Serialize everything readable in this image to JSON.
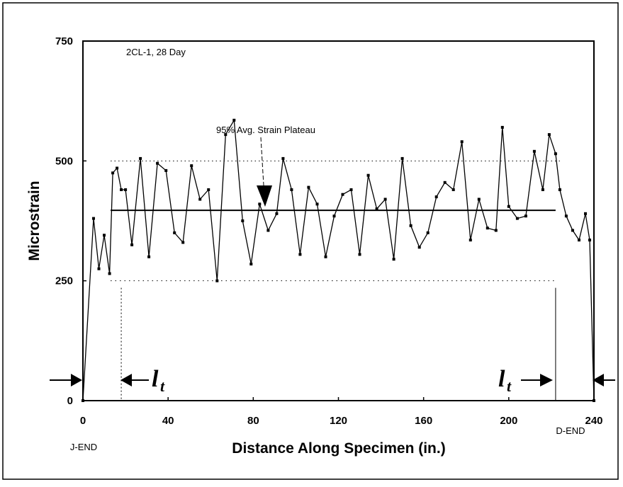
{
  "chart_data": {
    "type": "line",
    "title": "",
    "annotation_label": "2CL-1, 28 Day",
    "plateau_label": "95% Avg. Strain Plateau",
    "xlabel": "Distance Along Specimen (in.)",
    "ylabel": "Microstrain",
    "xlim": [
      0,
      240
    ],
    "ylim": [
      0,
      750
    ],
    "x_ticks": [
      "0",
      "40",
      "80",
      "120",
      "160",
      "200",
      "240"
    ],
    "y_ticks": [
      "0",
      "250",
      "500",
      "750"
    ],
    "end_labels": {
      "left": "J-END",
      "right": "D-END"
    },
    "transfer_length_symbol": "l",
    "transfer_length_subscript": "t",
    "reference_lines": {
      "upper": 500,
      "lower": 250
    },
    "plateau": {
      "value": 397,
      "x_start": 13,
      "x_end": 222
    },
    "transfer_lengths": {
      "left_x": 18,
      "right_x": 222
    },
    "grid": false,
    "series": [
      {
        "x": [
          0,
          5,
          7.5,
          10,
          12.5,
          14,
          16,
          18,
          20,
          23,
          27,
          31,
          35,
          39,
          43,
          47,
          51,
          55,
          59,
          63,
          67,
          71,
          75,
          79,
          83,
          87,
          91,
          94,
          98,
          102,
          106,
          110,
          114,
          118,
          122,
          126,
          130,
          134,
          138,
          142,
          146,
          150,
          154,
          158,
          162,
          166,
          170,
          174,
          178,
          182,
          186,
          190,
          194,
          197,
          200,
          204,
          208,
          212,
          216,
          219,
          222,
          224,
          227,
          230,
          233,
          236,
          238,
          240
        ],
        "values": [
          0,
          380,
          275,
          345,
          265,
          475,
          485,
          440,
          440,
          325,
          505,
          300,
          495,
          480,
          350,
          330,
          490,
          420,
          440,
          250,
          555,
          585,
          375,
          285,
          410,
          355,
          390,
          505,
          440,
          305,
          445,
          410,
          300,
          385,
          430,
          440,
          305,
          470,
          400,
          420,
          295,
          505,
          365,
          320,
          350,
          425,
          455,
          440,
          540,
          335,
          420,
          360,
          355,
          570,
          405,
          380,
          385,
          520,
          440,
          555,
          515,
          440,
          385,
          355,
          335,
          390,
          335,
          0
        ]
      }
    ]
  }
}
